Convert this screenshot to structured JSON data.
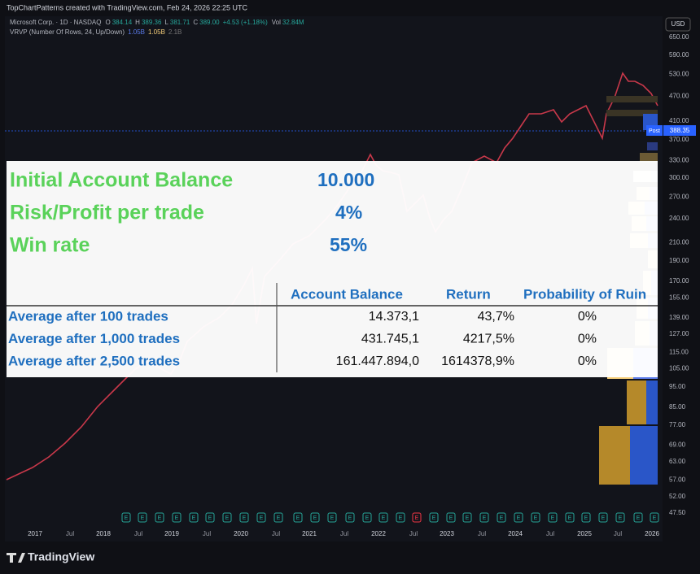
{
  "header": {
    "attribution": "TopChartPatterns created with TradingView.com, Feb 24, 2026 22:25 UTC",
    "symbol": "Microsoft Corp. · 1D · NASDAQ",
    "quote": [
      [
        "O",
        "384.14"
      ],
      [
        "H",
        "389.36"
      ],
      [
        "L",
        "381.71"
      ],
      [
        "C",
        "389.00"
      ]
    ],
    "change": "+4.53 (+1.18%)",
    "volume_label": "Vol",
    "volume": "32.84M",
    "indicator": "VRVP (Number Of Rows, 24, Up/Down)",
    "indicator_values": [
      "1.05B",
      "1.05B",
      "2.1B"
    ]
  },
  "currency": "USD",
  "price_axis": [
    "650.00",
    "590.00",
    "530.00",
    "470.00",
    "410.00",
    "370.00",
    "330.00",
    "300.00",
    "270.00",
    "240.00",
    "210.00",
    "190.00",
    "170.00",
    "155.00",
    "139.00",
    "127.00",
    "115.00",
    "105.00",
    "95.00",
    "85.00",
    "77.00",
    "69.00",
    "63.00",
    "57.00",
    "52.00",
    "47.50"
  ],
  "last_price": {
    "tag": "Post",
    "value": "388.35"
  },
  "time_axis": [
    "2017",
    "Jul",
    "2018",
    "Jul",
    "2019",
    "Jul",
    "2020",
    "Jul",
    "2021",
    "Jul",
    "2022",
    "Jul",
    "2023",
    "Jul",
    "2024",
    "Jul",
    "2025",
    "Jul",
    "2026"
  ],
  "earnings_marker": "E",
  "overlay": {
    "params": [
      {
        "label": "Initial Account Balance",
        "value": "10.000"
      },
      {
        "label": "Risk/Profit per trade",
        "value": "4%"
      },
      {
        "label": "Win rate",
        "value": "55%"
      }
    ],
    "table": {
      "columns": [
        "Account Balance",
        "Return",
        "Probability of Ruin"
      ],
      "rows": [
        [
          "Average after 100 trades",
          "14.373,1",
          "43,7%",
          "0%"
        ],
        [
          "Average after 1,000 trades",
          "431.745,1",
          "4217,5%",
          "0%"
        ],
        [
          "Average after 2,500 trades",
          "161.447.894,0",
          "1614378,9%",
          "0%"
        ]
      ]
    }
  },
  "footer": {
    "brand": "TradingView"
  }
}
